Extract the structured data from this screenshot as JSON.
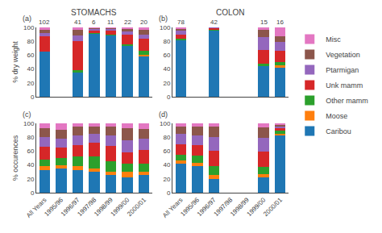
{
  "chart_data": [
    {
      "type": "bar",
      "stacked": true,
      "grid": false,
      "legend": "right",
      "tick_labels": "y",
      "title": "STOMACHS",
      "ylabel": "% dry weight",
      "categories": [
        "All Years",
        "1995/96",
        "1996/97",
        "1997/98",
        "1998/99",
        "1999/00",
        "2000/01"
      ],
      "ylim": [
        0,
        100
      ],
      "yticks": [
        0,
        20,
        40,
        60,
        80,
        100
      ],
      "series": [
        {
          "name": "Caribou",
          "values": [
            65,
            null,
            35,
            91,
            89,
            74,
            58
          ]
        },
        {
          "name": "Moose",
          "values": [
            0,
            null,
            0,
            0,
            0,
            0,
            3
          ]
        },
        {
          "name": "Other mamm",
          "values": [
            0,
            null,
            3,
            1,
            1,
            2,
            5
          ]
        },
        {
          "name": "Unk mamm",
          "values": [
            22,
            null,
            42,
            4,
            6,
            14,
            18
          ]
        },
        {
          "name": "Ptarmigan",
          "values": [
            5,
            null,
            8,
            2,
            2,
            4,
            5
          ]
        },
        {
          "name": "Vegetation",
          "values": [
            5,
            null,
            8,
            1,
            1,
            4,
            8
          ]
        },
        {
          "name": "Misc",
          "values": [
            3,
            null,
            4,
            1,
            1,
            2,
            3
          ]
        }
      ],
      "annotations": [
        {
          "text": "(a)"
        },
        {
          "x": "All Years",
          "text": "102"
        },
        {
          "x": "1996/97",
          "text": "41"
        },
        {
          "x": "1997/98",
          "text": "6"
        },
        {
          "x": "1998/99",
          "text": "11"
        },
        {
          "x": "1999/00",
          "text": "22"
        },
        {
          "x": "2000/01",
          "text": "20"
        }
      ]
    },
    {
      "type": "bar",
      "stacked": true,
      "grid": false,
      "tick_labels": "y",
      "title": "COLON",
      "categories": [
        "All Years",
        "1995/96",
        "1996/97",
        "1997/98",
        "1998/99",
        "1999/00",
        "2000/01"
      ],
      "ylim": [
        0,
        100
      ],
      "yticks": [
        0,
        20,
        40,
        60,
        80,
        100
      ],
      "series": [
        {
          "name": "Caribou",
          "values": [
            82,
            null,
            96,
            null,
            null,
            44,
            43
          ]
        },
        {
          "name": "Moose",
          "values": [
            0,
            null,
            0,
            null,
            null,
            0,
            2
          ]
        },
        {
          "name": "Other mamm",
          "values": [
            2,
            null,
            1,
            null,
            null,
            4,
            5
          ]
        },
        {
          "name": "Unk mamm",
          "values": [
            6,
            null,
            2,
            null,
            null,
            20,
            16
          ]
        },
        {
          "name": "Ptarmigan",
          "values": [
            5,
            null,
            1,
            null,
            null,
            18,
            13
          ]
        },
        {
          "name": "Vegetation",
          "values": [
            3,
            null,
            0,
            null,
            null,
            10,
            8
          ]
        },
        {
          "name": "Misc",
          "values": [
            2,
            null,
            0,
            null,
            null,
            4,
            13
          ]
        }
      ],
      "annotations": [
        {
          "text": "(b)"
        },
        {
          "x": "All Years",
          "text": "78"
        },
        {
          "x": "1996/97",
          "text": "42"
        },
        {
          "x": "1999/00",
          "text": "15"
        },
        {
          "x": "2000/01",
          "text": "16"
        }
      ]
    },
    {
      "type": "bar",
      "stacked": true,
      "grid": false,
      "ylabel": "% occurences",
      "categories": [
        "All Years",
        "1995/96",
        "1996/97",
        "1997/98",
        "1998/99",
        "1999/00",
        "2000/01"
      ],
      "ylim": [
        0,
        100
      ],
      "yticks": [
        0,
        20,
        40,
        60,
        80,
        100
      ],
      "series": [
        {
          "name": "Caribou",
          "values": [
            33,
            35,
            33,
            30,
            25,
            22,
            25
          ]
        },
        {
          "name": "Moose",
          "values": [
            5,
            5,
            5,
            5,
            5,
            8,
            5
          ]
        },
        {
          "name": "Other mamm",
          "values": [
            10,
            10,
            14,
            17,
            15,
            12,
            12
          ]
        },
        {
          "name": "Unk mamm",
          "values": [
            18,
            15,
            16,
            20,
            22,
            16,
            20
          ]
        },
        {
          "name": "Ptarmigan",
          "values": [
            14,
            13,
            15,
            13,
            16,
            18,
            16
          ]
        },
        {
          "name": "Vegetation",
          "values": [
            13,
            13,
            12,
            10,
            12,
            17,
            14
          ]
        },
        {
          "name": "Misc",
          "values": [
            7,
            9,
            5,
            5,
            5,
            7,
            8
          ]
        }
      ],
      "annotations": [
        {
          "text": "(c)"
        }
      ]
    },
    {
      "type": "bar",
      "stacked": true,
      "grid": false,
      "categories": [
        "All Years",
        "1995/96",
        "1996/97",
        "1997/98",
        "1998/99",
        "1999/00",
        "2000/01"
      ],
      "ylim": [
        0,
        100
      ],
      "yticks": [
        0,
        20,
        40,
        60,
        80,
        100
      ],
      "series": [
        {
          "name": "Caribou",
          "values": [
            42,
            38,
            20,
            null,
            null,
            22,
            83
          ]
        },
        {
          "name": "Moose",
          "values": [
            5,
            5,
            5,
            null,
            null,
            5,
            2
          ]
        },
        {
          "name": "Other mamm",
          "values": [
            8,
            10,
            13,
            null,
            null,
            10,
            4
          ]
        },
        {
          "name": "Unk mamm",
          "values": [
            15,
            15,
            22,
            null,
            null,
            22,
            4
          ]
        },
        {
          "name": "Ptarmigan",
          "values": [
            15,
            15,
            20,
            null,
            null,
            20,
            3
          ]
        },
        {
          "name": "Vegetation",
          "values": [
            10,
            12,
            15,
            null,
            null,
            15,
            2
          ]
        },
        {
          "name": "Misc",
          "values": [
            5,
            5,
            5,
            null,
            null,
            6,
            2
          ]
        }
      ],
      "annotations": [
        {
          "text": "(d)"
        }
      ]
    }
  ]
}
